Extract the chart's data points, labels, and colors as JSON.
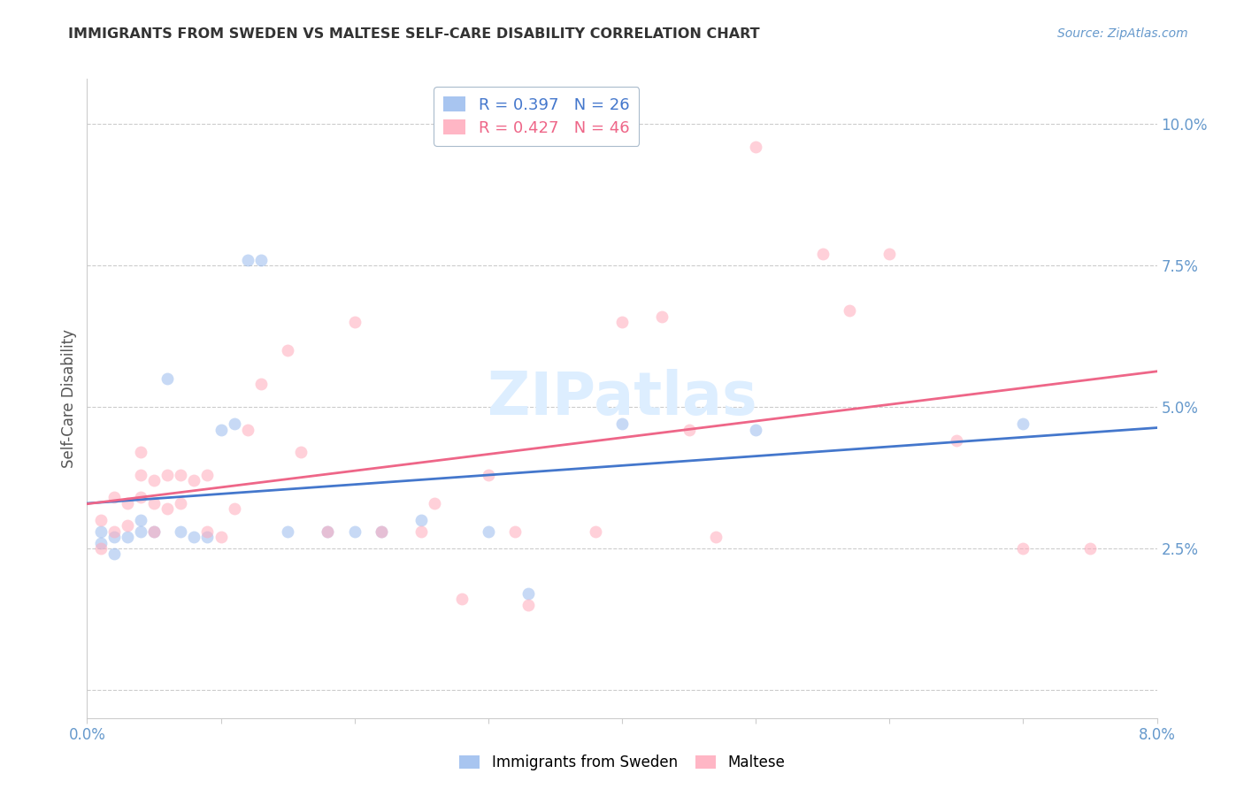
{
  "title": "IMMIGRANTS FROM SWEDEN VS MALTESE SELF-CARE DISABILITY CORRELATION CHART",
  "source": "Source: ZipAtlas.com",
  "ylabel": "Self-Care Disability",
  "xlim": [
    0.0,
    0.08
  ],
  "ylim": [
    -0.005,
    0.108
  ],
  "xticks": [
    0.0,
    0.01,
    0.02,
    0.03,
    0.04,
    0.05,
    0.06,
    0.07,
    0.08
  ],
  "xticklabels": [
    "0.0%",
    "",
    "",
    "",
    "",
    "",
    "",
    "",
    "8.0%"
  ],
  "yticks": [
    0.0,
    0.025,
    0.05,
    0.075,
    0.1
  ],
  "yticklabels_right": [
    "",
    "2.5%",
    "5.0%",
    "7.5%",
    "10.0%"
  ],
  "blue_color": "#99BBEE",
  "pink_color": "#FFAABB",
  "blue_line_color": "#4477CC",
  "pink_line_color": "#EE6688",
  "legend_R_blue": "R = 0.397",
  "legend_N_blue": "N = 26",
  "legend_R_pink": "R = 0.427",
  "legend_N_pink": "N = 46",
  "watermark": "ZIPatlas",
  "blue_scatter_x": [
    0.001,
    0.001,
    0.002,
    0.002,
    0.003,
    0.004,
    0.004,
    0.005,
    0.006,
    0.007,
    0.008,
    0.009,
    0.01,
    0.011,
    0.012,
    0.013,
    0.015,
    0.018,
    0.02,
    0.022,
    0.025,
    0.03,
    0.033,
    0.04,
    0.05,
    0.07
  ],
  "blue_scatter_y": [
    0.028,
    0.026,
    0.027,
    0.024,
    0.027,
    0.028,
    0.03,
    0.028,
    0.055,
    0.028,
    0.027,
    0.027,
    0.046,
    0.047,
    0.076,
    0.076,
    0.028,
    0.028,
    0.028,
    0.028,
    0.03,
    0.028,
    0.017,
    0.047,
    0.046,
    0.047
  ],
  "pink_scatter_x": [
    0.001,
    0.001,
    0.002,
    0.002,
    0.003,
    0.003,
    0.004,
    0.004,
    0.004,
    0.005,
    0.005,
    0.005,
    0.006,
    0.006,
    0.007,
    0.007,
    0.008,
    0.009,
    0.009,
    0.01,
    0.011,
    0.012,
    0.013,
    0.015,
    0.016,
    0.018,
    0.02,
    0.022,
    0.025,
    0.026,
    0.028,
    0.03,
    0.032,
    0.033,
    0.038,
    0.04,
    0.043,
    0.045,
    0.047,
    0.05,
    0.055,
    0.057,
    0.06,
    0.065,
    0.07,
    0.075
  ],
  "pink_scatter_y": [
    0.025,
    0.03,
    0.028,
    0.034,
    0.029,
    0.033,
    0.034,
    0.038,
    0.042,
    0.028,
    0.033,
    0.037,
    0.032,
    0.038,
    0.033,
    0.038,
    0.037,
    0.028,
    0.038,
    0.027,
    0.032,
    0.046,
    0.054,
    0.06,
    0.042,
    0.028,
    0.065,
    0.028,
    0.028,
    0.033,
    0.016,
    0.038,
    0.028,
    0.015,
    0.028,
    0.065,
    0.066,
    0.046,
    0.027,
    0.096,
    0.077,
    0.067,
    0.077,
    0.044,
    0.025,
    0.025
  ],
  "marker_size": 100,
  "alpha": 0.55,
  "grid_color": "#CCCCCC",
  "spine_color": "#CCCCCC",
  "tick_color": "#6699CC",
  "title_color": "#333333",
  "ylabel_color": "#555555",
  "source_color": "#6699CC",
  "watermark_color": "#DDEEFF",
  "legend_edge_color": "#AABBCC"
}
